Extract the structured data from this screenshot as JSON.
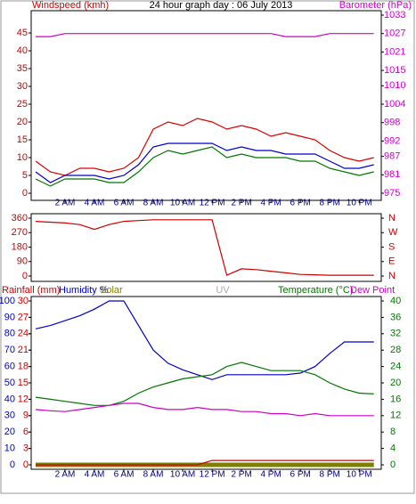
{
  "chart_data": [
    {
      "type": "line",
      "title": "24 hour graph day : 06 July 2013",
      "ylabel": "Windspeed (kmh)",
      "y2label": "Barometer (hPa)",
      "ycolor": "#cc0000",
      "y2color": "#cc00cc",
      "xlim": [
        -0.3,
        23.5
      ],
      "xticks": [
        {
          "value": 2,
          "label": "2 AM"
        },
        {
          "value": 4,
          "label": "4 AM"
        },
        {
          "value": 6,
          "label": "6 AM"
        },
        {
          "value": 8,
          "label": "8 AM"
        },
        {
          "value": 10,
          "label": "10 AM"
        },
        {
          "value": 12,
          "label": "12 PM"
        },
        {
          "value": 14,
          "label": "2 PM"
        },
        {
          "value": 16,
          "label": "4 PM"
        },
        {
          "value": 18,
          "label": "6 PM"
        },
        {
          "value": 20,
          "label": "8 PM"
        },
        {
          "value": 22,
          "label": "10 PM"
        }
      ],
      "ylim": [
        0,
        50
      ],
      "yticks": [
        0,
        5,
        10,
        15,
        20,
        25,
        30,
        35,
        40,
        45
      ],
      "y2lim": [
        975,
        1033
      ],
      "y2ticks": [
        975,
        981,
        987,
        992,
        998,
        1004,
        1010,
        1015,
        1021,
        1027,
        1033
      ],
      "x": [
        0,
        1,
        2,
        3,
        4,
        5,
        6,
        7,
        8,
        9,
        10,
        11,
        12,
        13,
        14,
        15,
        16,
        17,
        18,
        19,
        20,
        21,
        22,
        23
      ],
      "series": [
        {
          "color": "#dd0000",
          "values": [
            9,
            6,
            5,
            7,
            7,
            6,
            7,
            10,
            18,
            20,
            19,
            21,
            20,
            18,
            19,
            18,
            16,
            17,
            16,
            15,
            12,
            10,
            9,
            10
          ]
        },
        {
          "color": "#007700",
          "values": [
            4,
            2,
            4,
            4,
            4,
            3,
            3,
            6,
            10,
            12,
            11,
            12,
            13,
            10,
            11,
            10,
            10,
            10,
            9,
            9,
            7,
            6,
            5,
            6
          ]
        },
        {
          "color": "#0000cc",
          "values": [
            6,
            3,
            5,
            5,
            5,
            4,
            5,
            8,
            13,
            14,
            14,
            14,
            14,
            12,
            13,
            12,
            12,
            11,
            11,
            11,
            9,
            7,
            7,
            8
          ]
        },
        {
          "color": "#cc00cc",
          "axis": "y2",
          "values": [
            1026,
            1026,
            1027,
            1027,
            1027,
            1027,
            1027,
            1027,
            1027,
            1027,
            1027,
            1027,
            1027,
            1027,
            1027,
            1027,
            1027,
            1026,
            1026,
            1026,
            1027,
            1027,
            1027,
            1027
          ]
        }
      ]
    },
    {
      "type": "line",
      "ycolor": "#cc0000",
      "y2color": "#cc0000",
      "xlim": [
        -0.3,
        23.5
      ],
      "ylim": [
        0,
        360
      ],
      "yticks": [
        0,
        90,
        180,
        270,
        360
      ],
      "y2lim": [
        0,
        360
      ],
      "y2ticks": [
        {
          "value": 0,
          "label": "N"
        },
        {
          "value": 90,
          "label": "E"
        },
        {
          "value": 180,
          "label": "S"
        },
        {
          "value": 270,
          "label": "W"
        },
        {
          "value": 360,
          "label": "N"
        }
      ],
      "x": [
        0,
        1,
        2,
        3,
        4,
        5,
        6,
        7,
        8,
        9,
        10,
        11,
        12,
        13,
        14,
        15,
        16,
        17,
        18,
        19,
        20,
        21,
        22,
        23
      ],
      "series": [
        {
          "color": "#cc0000",
          "values": [
            340,
            335,
            330,
            320,
            290,
            320,
            340,
            345,
            350,
            350,
            350,
            350,
            350,
            5,
            45,
            40,
            30,
            20,
            10,
            8,
            5,
            5,
            5,
            5
          ]
        }
      ]
    },
    {
      "type": "line",
      "header_labels": [
        "Rainfall (mm)",
        "Humidity %",
        "Solar",
        "UV",
        "Temperature (°C)",
        "Dew Point"
      ],
      "header_colors": [
        "#cc0000",
        "#0000cc",
        "#808000",
        "#aaaaaa",
        "#007700",
        "#cc00cc"
      ],
      "ycolor": "#0000cc",
      "y3color": "#cc0000",
      "y2color": "#007700",
      "xlim": [
        -0.3,
        23.5
      ],
      "xticks": [
        {
          "value": 2,
          "label": "2 AM"
        },
        {
          "value": 4,
          "label": "4 AM"
        },
        {
          "value": 6,
          "label": "6 AM"
        },
        {
          "value": 8,
          "label": "8 AM"
        },
        {
          "value": 10,
          "label": "10 AM"
        },
        {
          "value": 12,
          "label": "12 PM"
        },
        {
          "value": 14,
          "label": "2 PM"
        },
        {
          "value": 16,
          "label": "4 PM"
        },
        {
          "value": 18,
          "label": "6 PM"
        },
        {
          "value": 20,
          "label": "8 PM"
        },
        {
          "value": 22,
          "label": "10 PM"
        }
      ],
      "ylim": [
        0,
        100
      ],
      "yticks": [
        0,
        10,
        20,
        30,
        40,
        50,
        60,
        70,
        80,
        90,
        100
      ],
      "y3lim": [
        0,
        30
      ],
      "y3ticks": [
        0,
        3,
        6,
        9,
        12,
        15,
        18,
        21,
        24,
        27,
        30
      ],
      "y2lim": [
        0,
        40
      ],
      "y2ticks": [
        0,
        4,
        8,
        12,
        16,
        20,
        24,
        28,
        32,
        36,
        40
      ],
      "x": [
        0,
        1,
        2,
        3,
        4,
        5,
        6,
        7,
        8,
        9,
        10,
        11,
        12,
        13,
        14,
        15,
        16,
        17,
        18,
        19,
        20,
        21,
        22,
        23
      ],
      "series": [
        {
          "color": "#808000",
          "width": 5,
          "values": [
            0,
            0,
            0,
            0,
            0,
            0,
            0,
            0,
            0,
            0,
            0,
            0,
            0,
            0,
            0,
            0,
            0,
            0,
            0,
            0,
            0,
            0,
            0,
            0
          ]
        },
        {
          "color": "#cc0000",
          "axis": "y3",
          "values": [
            0,
            0,
            0,
            0,
            0,
            0,
            0,
            0,
            0,
            0,
            0,
            0,
            0.8,
            0.8,
            0.8,
            0.8,
            0.8,
            0.8,
            0.8,
            0.8,
            0.8,
            0.8,
            0.8,
            0.8
          ]
        },
        {
          "color": "#0000cc",
          "values": [
            83,
            85,
            88,
            91,
            95,
            100,
            100,
            85,
            70,
            62,
            58,
            55,
            52,
            55,
            55,
            55,
            55,
            55,
            56,
            60,
            68,
            75,
            75,
            75
          ]
        },
        {
          "color": "#007700",
          "axis": "y2",
          "values": [
            16.5,
            16,
            15.5,
            15,
            14.5,
            14.5,
            15.5,
            17.5,
            19,
            20,
            21,
            21.5,
            22,
            24,
            25,
            24,
            23,
            23,
            23,
            22,
            20,
            18.5,
            17.5,
            17.3
          ]
        },
        {
          "color": "#cc00cc",
          "axis": "y2",
          "values": [
            13.5,
            13.2,
            13,
            13.5,
            14,
            14.5,
            15,
            15,
            14,
            13.5,
            13.5,
            14,
            13.5,
            13.5,
            13,
            13,
            12.5,
            12.5,
            12,
            12.5,
            12,
            12,
            12,
            12
          ]
        }
      ]
    }
  ]
}
